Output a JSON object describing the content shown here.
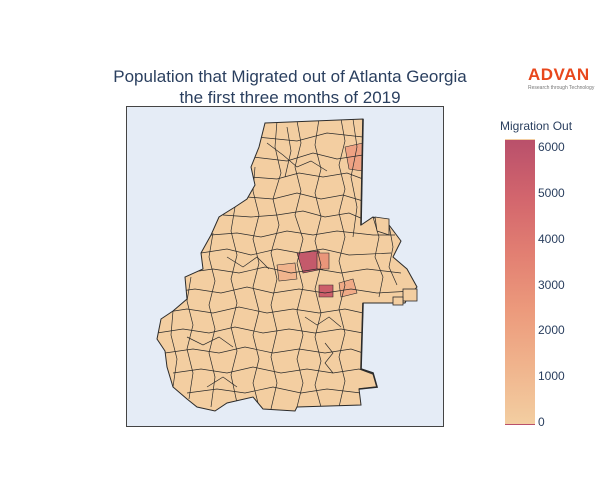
{
  "title_line1": "Population that Migrated out of Atlanta Georgia",
  "title_line2": "the first three months of 2019",
  "logo": {
    "word": "ADVAN",
    "tagline": "Research through Technology"
  },
  "colorbar": {
    "title": "Migration Out",
    "ticks": [
      "6000",
      "5000",
      "4000",
      "3000",
      "2000",
      "1000",
      "0"
    ],
    "colors": [
      "#f3cea1",
      "#f0b48d",
      "#ec9a7c",
      "#e27f72",
      "#d2656d",
      "#b9506b"
    ]
  },
  "chart_data": {
    "type": "choropleth",
    "title": "Population that Migrated out of Atlanta Georgia the first three months of 2019",
    "colorbar_title": "Migration Out",
    "color_range": [
      0,
      6200
    ],
    "colorscale": [
      "#f3cea1",
      "#b9506b"
    ],
    "highlighted_regions": [
      {
        "approx_value": 5800
      },
      {
        "approx_value": 5200
      },
      {
        "approx_value": 2200
      },
      {
        "approx_value": 1800
      },
      {
        "approx_value": 1600
      }
    ],
    "typical_region_value_range": [
      0,
      1000
    ]
  }
}
